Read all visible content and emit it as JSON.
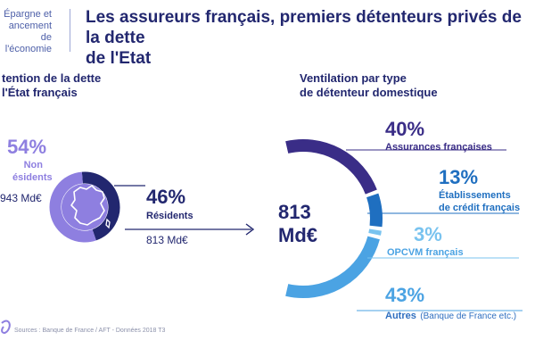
{
  "header": {
    "section_line1": "Épargne et",
    "section_line2": "ancement de",
    "section_line3": "l'économie",
    "title_line1": "Les assureurs français, premiers détenteurs privés de la dette",
    "title_line2": "de l'Etat"
  },
  "colors": {
    "navy": "#22276f",
    "purple": "#8e7fe0",
    "violet": "#3a2d87",
    "blue": "#1f6fc0",
    "light_blue": "#4ba3e3",
    "sky": "#79c3ef"
  },
  "icons": {
    "france_map": "france-map-icon",
    "arrow": "arrow-right-icon",
    "logo": "logo-icon"
  },
  "left": {
    "subtitle_line1": "tention de la dette",
    "subtitle_line2": "l'État français",
    "nonres_pct": "54%",
    "nonres_label_line1": "Non",
    "nonres_label_line2": "ésidents",
    "nonres_amount": "943 Md€",
    "res_pct": "46%",
    "res_label": "Résidents",
    "res_amount": "813 Md€"
  },
  "right": {
    "subtitle_line1": "Ventilation par type",
    "subtitle_line2": "de détenteur domestique",
    "center_line1": "813",
    "center_line2": "Md€",
    "items": [
      {
        "pct": "40%",
        "label_line1": "Assurances françaises",
        "label_line2": ""
      },
      {
        "pct": "13%",
        "label_line1": "Établissements",
        "label_line2": "de crédit français"
      },
      {
        "pct": "3%",
        "label_line1": "OPCVM français",
        "label_line2": ""
      },
      {
        "pct": "43%",
        "label_line1": "Autres",
        "label_line2": "(Banque de France etc.)"
      }
    ]
  },
  "footer": {
    "source": "Sources : Banque de France / AFT - Données 2018 T3"
  },
  "chart_data": [
    {
      "type": "pie",
      "title": "",
      "categories": [
        "Non résidents",
        "Résidents"
      ],
      "values": [
        54,
        46
      ],
      "amounts": [
        "943 Md€",
        "813 Md€"
      ],
      "colors": [
        "#8e7fe0",
        "#22276f"
      ]
    },
    {
      "type": "pie",
      "title": "Ventilation par type de détenteur domestique",
      "center_label": "813 Md€",
      "categories": [
        "Assurances françaises",
        "Établissements de crédit français",
        "OPCVM français",
        "Autres (Banque de France etc.)"
      ],
      "values": [
        40,
        13,
        3,
        43
      ],
      "colors": [
        "#3a2d87",
        "#1f6fc0",
        "#79c3ef",
        "#4ba3e3"
      ]
    }
  ]
}
